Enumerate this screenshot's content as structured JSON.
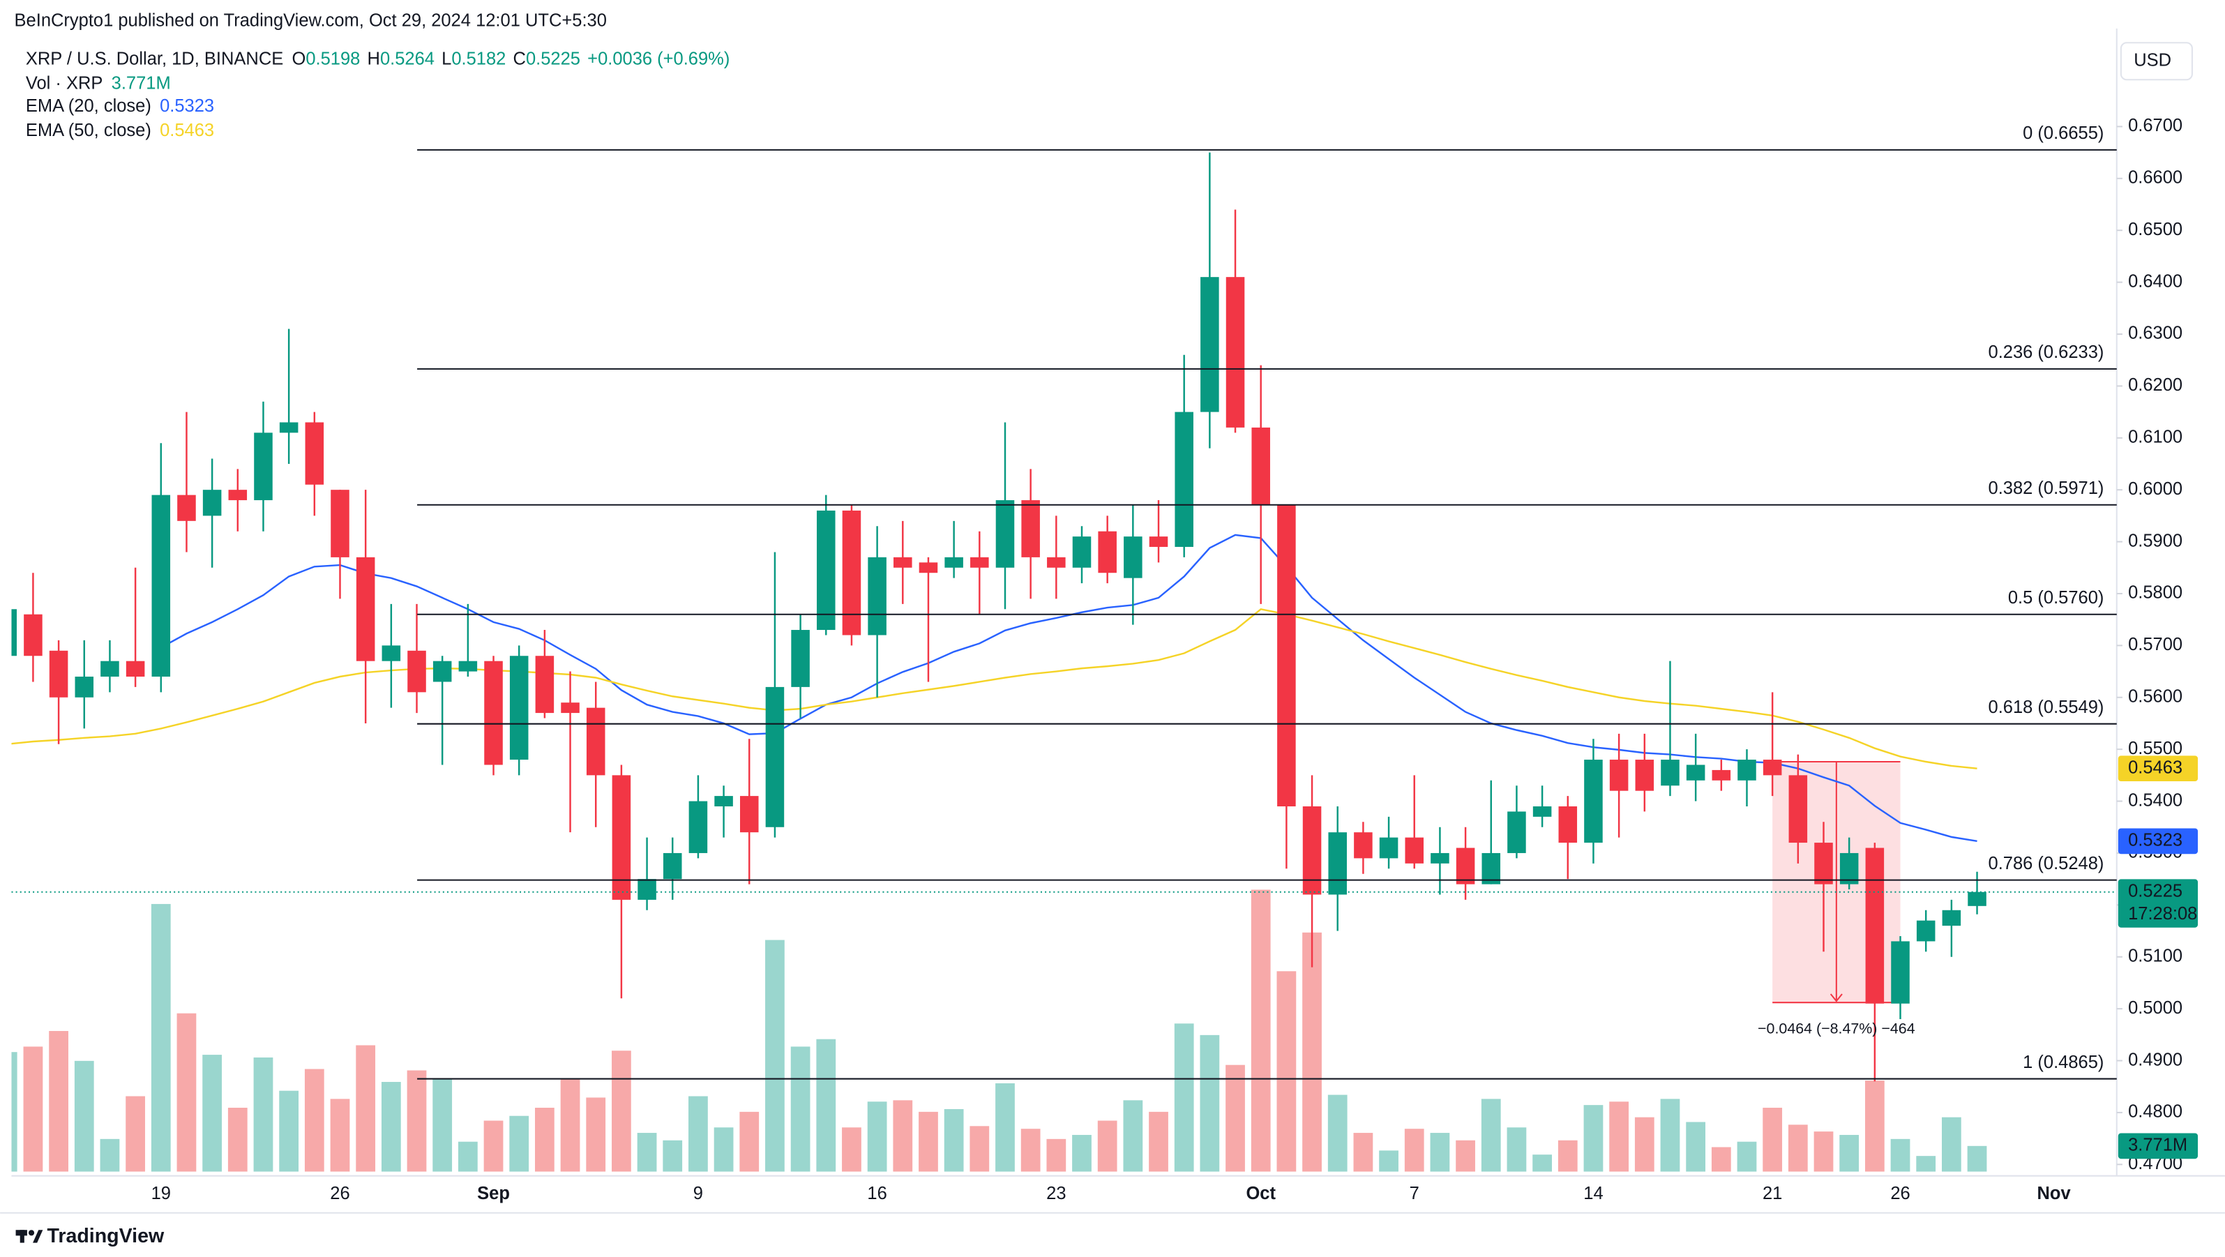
{
  "header": {
    "publisher": "BeInCrypto1 published on TradingView.com, Oct 29, 2024 12:01 UTC+5:30"
  },
  "footer": {
    "brand": "TradingView"
  },
  "chart_data": {
    "type": "candlestick",
    "symbol": "XRP / U.S. Dollar, 1D, BINANCE",
    "ohlc_labels": [
      "O",
      "H",
      "L",
      "C"
    ],
    "change": "+0.0036 (+0.69%)",
    "currency": "USD",
    "countdown": "17:28:08",
    "categories": [
      null,
      null,
      null,
      null,
      null,
      null,
      "19",
      null,
      null,
      null,
      null,
      null,
      null,
      "26",
      null,
      null,
      null,
      null,
      null,
      "Sep",
      null,
      null,
      null,
      null,
      null,
      null,
      null,
      "9",
      null,
      null,
      null,
      null,
      null,
      null,
      "16",
      null,
      null,
      null,
      null,
      null,
      null,
      "23",
      null,
      null,
      null,
      null,
      null,
      null,
      null,
      "Oct",
      null,
      null,
      null,
      null,
      null,
      "7",
      null,
      null,
      null,
      null,
      null,
      null,
      "14",
      null,
      null,
      null,
      null,
      null,
      null,
      "21",
      null,
      null,
      null,
      null,
      "26",
      null,
      null,
      null,
      null,
      null,
      "Nov"
    ],
    "open": [
      0.568,
      0.576,
      0.569,
      0.56,
      0.564,
      0.567,
      0.564,
      0.599,
      0.595,
      0.6,
      0.598,
      0.611,
      0.613,
      0.6,
      0.587,
      0.567,
      0.569,
      0.563,
      0.565,
      0.567,
      0.548,
      0.568,
      0.559,
      0.558,
      0.545,
      0.521,
      0.525,
      0.53,
      0.539,
      0.541,
      0.535,
      0.562,
      0.573,
      0.596,
      0.572,
      0.587,
      0.586,
      0.585,
      0.587,
      0.585,
      0.598,
      0.587,
      0.585,
      0.592,
      0.583,
      0.591,
      0.589,
      0.615,
      0.641,
      0.612,
      0.597,
      0.539,
      0.522,
      0.534,
      0.529,
      0.533,
      0.528,
      0.531,
      0.524,
      0.53,
      0.537,
      0.539,
      0.532,
      0.548,
      0.548,
      0.543,
      0.544,
      0.546,
      0.544,
      0.548,
      0.545,
      0.532,
      0.524,
      0.531,
      0.501,
      0.513,
      0.516,
      0.5198,
      null,
      null,
      null
    ],
    "high": [
      0.58,
      0.584,
      0.571,
      0.571,
      0.571,
      0.585,
      0.609,
      0.615,
      0.606,
      0.604,
      0.617,
      0.631,
      0.615,
      0.6,
      0.6,
      0.578,
      0.578,
      0.568,
      0.578,
      0.568,
      0.57,
      0.573,
      0.565,
      0.563,
      0.547,
      0.533,
      0.533,
      0.545,
      0.543,
      0.552,
      0.588,
      0.576,
      0.599,
      0.597,
      0.593,
      0.594,
      0.587,
      0.594,
      0.592,
      0.613,
      0.604,
      0.595,
      0.593,
      0.595,
      0.597,
      0.598,
      0.626,
      0.665,
      0.654,
      0.624,
      0.597,
      0.545,
      0.539,
      0.536,
      0.537,
      0.545,
      0.535,
      0.535,
      0.544,
      0.543,
      0.543,
      0.541,
      0.552,
      0.553,
      0.553,
      0.567,
      0.553,
      0.548,
      0.55,
      0.561,
      0.549,
      0.536,
      0.533,
      0.532,
      0.514,
      0.519,
      0.521,
      0.5264,
      null,
      null,
      null
    ],
    "low": [
      0.566,
      0.563,
      0.551,
      0.554,
      0.561,
      0.562,
      0.561,
      0.588,
      0.585,
      0.592,
      0.592,
      0.605,
      0.595,
      0.579,
      0.555,
      0.558,
      0.557,
      0.547,
      0.564,
      0.545,
      0.545,
      0.556,
      0.534,
      0.535,
      0.502,
      0.519,
      0.521,
      0.529,
      0.533,
      0.524,
      0.533,
      0.556,
      0.572,
      0.57,
      0.56,
      0.578,
      0.563,
      0.583,
      0.576,
      0.577,
      0.579,
      0.579,
      0.582,
      0.582,
      0.574,
      0.586,
      0.587,
      0.608,
      0.611,
      0.578,
      0.527,
      0.508,
      0.515,
      0.526,
      0.527,
      0.527,
      0.522,
      0.521,
      0.524,
      0.529,
      0.535,
      0.525,
      0.528,
      0.533,
      0.538,
      0.541,
      0.54,
      0.542,
      0.539,
      0.541,
      0.528,
      0.511,
      0.523,
      0.486,
      0.498,
      0.511,
      0.51,
      0.5182,
      null,
      null,
      null
    ],
    "close": [
      0.577,
      0.568,
      0.56,
      0.564,
      0.567,
      0.564,
      0.599,
      0.594,
      0.6,
      0.598,
      0.611,
      0.613,
      0.601,
      0.587,
      0.567,
      0.57,
      0.561,
      0.567,
      0.567,
      0.547,
      0.568,
      0.557,
      0.557,
      0.545,
      0.521,
      0.525,
      0.53,
      0.54,
      0.541,
      0.534,
      0.562,
      0.573,
      0.596,
      0.572,
      0.587,
      0.585,
      0.584,
      0.587,
      0.585,
      0.598,
      0.587,
      0.585,
      0.591,
      0.584,
      0.591,
      0.589,
      0.615,
      0.641,
      0.612,
      0.597,
      0.539,
      0.522,
      0.534,
      0.529,
      0.533,
      0.528,
      0.53,
      0.524,
      0.53,
      0.538,
      0.539,
      0.532,
      0.548,
      0.542,
      0.542,
      0.548,
      0.547,
      0.544,
      0.548,
      0.545,
      0.532,
      0.524,
      0.53,
      0.501,
      0.513,
      0.517,
      0.519,
      0.5225,
      null,
      null,
      null
    ],
    "colors": {
      "up": "#089981",
      "down": "#f23645",
      "volume_up": "#9ad6ce",
      "volume_down": "#f7a9a9",
      "fib": "#131722",
      "measure": "#f23645"
    },
    "volume": {
      "name": "Vol · XRP",
      "last_label": "3.771M",
      "values": [
        17.6,
        18.4,
        20.7,
        16.3,
        4.8,
        11.1,
        39.4,
        23.3,
        17.2,
        9.4,
        16.8,
        11.9,
        15.1,
        10.7,
        18.6,
        13.2,
        14.9,
        13.6,
        4.4,
        7.5,
        8.2,
        9.4,
        13.6,
        10.9,
        17.8,
        5.7,
        4.6,
        11.1,
        6.5,
        8.8,
        34.1,
        18.4,
        19.5,
        6.5,
        10.3,
        10.5,
        8.8,
        9.2,
        6.7,
        13.0,
        6.3,
        4.8,
        5.4,
        7.5,
        10.5,
        8.8,
        21.8,
        20.1,
        15.7,
        41.5,
        29.5,
        35.2,
        11.3,
        5.7,
        3.1,
        6.3,
        5.7,
        4.6,
        10.7,
        6.5,
        2.5,
        4.6,
        9.8,
        10.3,
        8.0,
        10.7,
        7.3,
        3.6,
        4.4,
        9.4,
        6.9,
        5.9,
        5.4,
        13.4,
        4.8,
        2.3,
        8.0,
        3.771,
        null,
        null,
        null
      ]
    },
    "series": [
      {
        "name": "EMA (20, close)",
        "color": "#2962ff",
        "values": [
          null,
          null,
          null,
          null,
          null,
          null,
          0.5696,
          0.5723,
          0.5745,
          0.577,
          0.5797,
          0.5833,
          0.5852,
          0.5855,
          0.5839,
          0.583,
          0.5814,
          0.5792,
          0.577,
          0.5745,
          0.5732,
          0.571,
          0.5682,
          0.5655,
          0.5614,
          0.5586,
          0.5572,
          0.5564,
          0.555,
          0.5529,
          0.5531,
          0.5559,
          0.5586,
          0.56,
          0.5627,
          0.5649,
          0.5666,
          0.5688,
          0.5704,
          0.5729,
          0.5743,
          0.5753,
          0.5764,
          0.5773,
          0.5778,
          0.5792,
          0.5833,
          0.5888,
          0.5913,
          0.5907,
          0.5852,
          0.5792,
          0.5751,
          0.571,
          0.5674,
          0.5638,
          0.5605,
          0.5572,
          0.555,
          0.5537,
          0.5526,
          0.5512,
          0.5504,
          0.5499,
          0.5493,
          0.549,
          0.5485,
          0.5482,
          0.5476,
          0.5474,
          0.5463,
          0.5446,
          0.543,
          0.5391,
          0.5358,
          0.5345,
          0.5331,
          0.5323,
          null,
          null,
          null
        ]
      },
      {
        "name": "EMA (50, close)",
        "color": "#f5d327",
        "values": [
          0.551,
          0.5515,
          0.5518,
          0.5522,
          0.5525,
          0.553,
          0.554,
          0.5552,
          0.5565,
          0.5578,
          0.5592,
          0.561,
          0.5628,
          0.564,
          0.5648,
          0.5652,
          0.5655,
          0.5656,
          0.5655,
          0.5652,
          0.565,
          0.5647,
          0.5644,
          0.5638,
          0.5625,
          0.5613,
          0.5602,
          0.5595,
          0.5588,
          0.558,
          0.5575,
          0.5578,
          0.5586,
          0.5592,
          0.56,
          0.5608,
          0.5615,
          0.5622,
          0.563,
          0.5638,
          0.5645,
          0.565,
          0.5656,
          0.566,
          0.5665,
          0.5672,
          0.5685,
          0.5708,
          0.573,
          0.577,
          0.576,
          0.5748,
          0.5735,
          0.5722,
          0.5708,
          0.5695,
          0.5682,
          0.5668,
          0.5655,
          0.5643,
          0.5632,
          0.562,
          0.561,
          0.56,
          0.5593,
          0.5588,
          0.5584,
          0.5578,
          0.5572,
          0.5565,
          0.5553,
          0.5538,
          0.5522,
          0.5502,
          0.5486,
          0.5476,
          0.5468,
          0.5463,
          null,
          null,
          null
        ]
      }
    ],
    "fib_levels": [
      {
        "label": "0 (0.6655)",
        "value": 0.6655
      },
      {
        "label": "0.236 (0.6233)",
        "value": 0.6233
      },
      {
        "label": "0.382 (0.5971)",
        "value": 0.5971
      },
      {
        "label": "0.5 (0.5760)",
        "value": 0.576
      },
      {
        "label": "0.618 (0.5549)",
        "value": 0.5549
      },
      {
        "label": "0.786 (0.5248)",
        "value": 0.5248
      },
      {
        "label": "1 (0.4865)",
        "value": 0.4865
      }
    ],
    "measure": {
      "label": "−0.0464 (−8.47%) −464",
      "top": 0.5476,
      "bottom": 0.5012
    },
    "ylim": [
      0.4678,
      0.6889
    ],
    "yticks": [
      {
        "value": 0.47,
        "label": "0.4700"
      },
      {
        "value": 0.48,
        "label": "0.4800"
      },
      {
        "value": 0.49,
        "label": "0.4900"
      },
      {
        "value": 0.5,
        "label": "0.5000"
      },
      {
        "value": 0.51,
        "label": "0.5100"
      },
      {
        "value": 0.52,
        "label": "0.5200"
      },
      {
        "value": 0.53,
        "label": "0.5300"
      },
      {
        "value": 0.54,
        "label": "0.5400"
      },
      {
        "value": 0.55,
        "label": "0.5500"
      },
      {
        "value": 0.56,
        "label": "0.5600"
      },
      {
        "value": 0.57,
        "label": "0.5700"
      },
      {
        "value": 0.58,
        "label": "0.5800"
      },
      {
        "value": 0.59,
        "label": "0.5900"
      },
      {
        "value": 0.6,
        "label": "0.6000"
      },
      {
        "value": 0.61,
        "label": "0.6100"
      },
      {
        "value": 0.62,
        "label": "0.6200"
      },
      {
        "value": 0.63,
        "label": "0.6300"
      },
      {
        "value": 0.64,
        "label": "0.6400"
      },
      {
        "value": 0.65,
        "label": "0.6500"
      },
      {
        "value": 0.66,
        "label": "0.6600"
      },
      {
        "value": 0.67,
        "label": "0.6700"
      }
    ],
    "grid": false
  }
}
